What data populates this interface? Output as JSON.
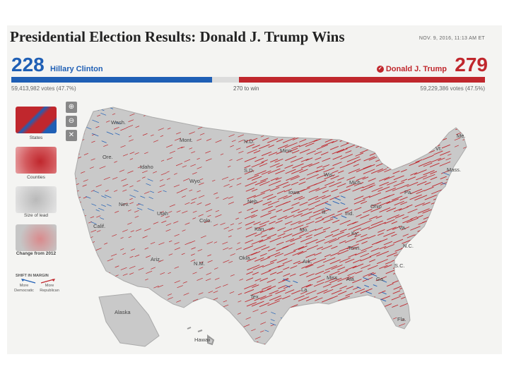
{
  "header": {
    "title": "Presidential Election Results: Donald J. Trump Wins",
    "timestamp": "NOV. 9, 2016, 11:13 AM ET"
  },
  "scoreboard": {
    "dem_votes_ev": "228",
    "dem_name": "Hillary Clinton",
    "dem_popular": "59,413,982 votes (47.7%)",
    "rep_votes_ev": "279",
    "rep_name": "Donald J. Trump",
    "rep_popular": "59,229,386 votes (47.5%)",
    "to_win": "270 to win",
    "dem_ev_fraction": 0.424,
    "rep_ev_fraction": 0.519
  },
  "map_views": [
    {
      "label": "States",
      "selected": false
    },
    {
      "label": "Counties",
      "selected": false
    },
    {
      "label": "Size of lead",
      "selected": false
    },
    {
      "label": "Change from 2012",
      "selected": true
    }
  ],
  "controls": {
    "zoom_in_icon": "magnifier-plus-icon",
    "zoom_out_icon": "magnifier-minus-icon",
    "close_icon": "close-icon"
  },
  "legend": {
    "title": "SHIFT IN MARGIN",
    "left_label": "More Democratic",
    "right_label": "More Republican"
  },
  "state_labels": {
    "wash": "Wash.",
    "mont": "Mont.",
    "nd": "N.D.",
    "minn": "Minn.",
    "ore": "Ore.",
    "idaho": "Idaho",
    "wyo": "Wyo.",
    "sd": "S.D.",
    "mich": "Mich.",
    "nev": "Nev.",
    "utah": "Utah",
    "colo": "Colo.",
    "neb": "Neb.",
    "iowa": "Iowa",
    "ill": "Ill.",
    "ind": "Ind.",
    "ohio": "Ohio",
    "calif": "Calif.",
    "kan": "Kan.",
    "mo": "Mo.",
    "ky": "Ky.",
    "va": "Va.",
    "ariz": "Ariz.",
    "nm": "N.M.",
    "okla": "Okla.",
    "ark": "Ark.",
    "tenn": "Tenn.",
    "nc": "N.C.",
    "sc": "S.C.",
    "tex": "Tex.",
    "la": "La.",
    "miss": "Miss.",
    "ala": "Ala.",
    "ga": "Ga.",
    "fla": "Fla.",
    "alaska": "Alaska",
    "hawaii": "Hawaii",
    "me": "Me.",
    "vt": "Vt.",
    "mass": "Mass.",
    "pa": "Pa.",
    "wis": "Wis."
  },
  "colors": {
    "democratic": "#1f5fb5",
    "republican": "#c0272d",
    "land": "#c9c9c9"
  }
}
